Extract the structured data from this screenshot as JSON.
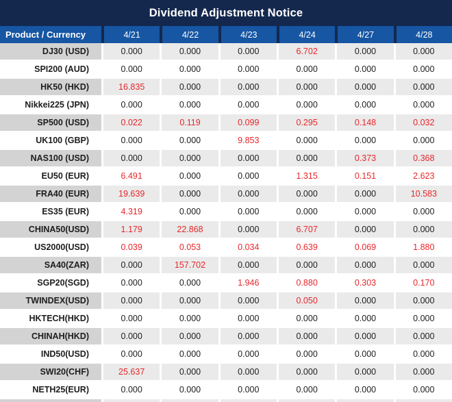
{
  "title": "Dividend Adjustment Notice",
  "colors": {
    "title_bg": "#14284e",
    "header_bg": "#1656a3",
    "alt_row_product_bg": "#d3d3d3",
    "alt_row_data_bg": "#eaeaea",
    "row_bg": "#ffffff",
    "value_red": "#e7262a",
    "value_black": "#1c1c1c",
    "header_text": "#ffffff"
  },
  "table": {
    "product_header": "Product / Currency",
    "date_headers": [
      "4/21",
      "4/22",
      "4/23",
      "4/24",
      "4/27",
      "4/28"
    ],
    "rows": [
      {
        "product": "DJ30 (USD)",
        "values": [
          "0.000",
          "0.000",
          "0.000",
          "6.702",
          "0.000",
          "0.000"
        ],
        "red": [
          false,
          false,
          false,
          true,
          false,
          false
        ]
      },
      {
        "product": "SPI200 (AUD)",
        "values": [
          "0.000",
          "0.000",
          "0.000",
          "0.000",
          "0.000",
          "0.000"
        ],
        "red": [
          false,
          false,
          false,
          false,
          false,
          false
        ]
      },
      {
        "product": "HK50 (HKD)",
        "values": [
          "16.835",
          "0.000",
          "0.000",
          "0.000",
          "0.000",
          "0.000"
        ],
        "red": [
          true,
          false,
          false,
          false,
          false,
          false
        ]
      },
      {
        "product": "Nikkei225 (JPN)",
        "values": [
          "0.000",
          "0.000",
          "0.000",
          "0.000",
          "0.000",
          "0.000"
        ],
        "red": [
          false,
          false,
          false,
          false,
          false,
          false
        ]
      },
      {
        "product": "SP500 (USD)",
        "values": [
          "0.022",
          "0.119",
          "0.099",
          "0.295",
          "0.148",
          "0.032"
        ],
        "red": [
          true,
          true,
          true,
          true,
          true,
          true
        ]
      },
      {
        "product": "UK100 (GBP)",
        "values": [
          "0.000",
          "0.000",
          "9.853",
          "0.000",
          "0.000",
          "0.000"
        ],
        "red": [
          false,
          false,
          true,
          false,
          false,
          false
        ]
      },
      {
        "product": "NAS100 (USD)",
        "values": [
          "0.000",
          "0.000",
          "0.000",
          "0.000",
          "0.373",
          "0.368"
        ],
        "red": [
          false,
          false,
          false,
          false,
          true,
          true
        ]
      },
      {
        "product": "EU50 (EUR)",
        "values": [
          "6.491",
          "0.000",
          "0.000",
          "1.315",
          "0.151",
          "2.623"
        ],
        "red": [
          true,
          false,
          false,
          true,
          true,
          true
        ]
      },
      {
        "product": "FRA40 (EUR)",
        "values": [
          "19.639",
          "0.000",
          "0.000",
          "0.000",
          "0.000",
          "10.583"
        ],
        "red": [
          true,
          false,
          false,
          false,
          false,
          true
        ]
      },
      {
        "product": "ES35 (EUR)",
        "values": [
          "4.319",
          "0.000",
          "0.000",
          "0.000",
          "0.000",
          "0.000"
        ],
        "red": [
          true,
          false,
          false,
          false,
          false,
          false
        ]
      },
      {
        "product": "CHINA50(USD)",
        "values": [
          "1.179",
          "22.868",
          "0.000",
          "6.707",
          "0.000",
          "0.000"
        ],
        "red": [
          true,
          true,
          false,
          true,
          false,
          false
        ]
      },
      {
        "product": "US2000(USD)",
        "values": [
          "0.039",
          "0.053",
          "0.034",
          "0.639",
          "0.069",
          "1.880"
        ],
        "red": [
          true,
          true,
          true,
          true,
          true,
          true
        ]
      },
      {
        "product": "SA40(ZAR)",
        "values": [
          "0.000",
          "157.702",
          "0.000",
          "0.000",
          "0.000",
          "0.000"
        ],
        "red": [
          false,
          true,
          false,
          false,
          false,
          false
        ]
      },
      {
        "product": "SGP20(SGD)",
        "values": [
          "0.000",
          "0.000",
          "1.946",
          "0.880",
          "0.303",
          "0.170"
        ],
        "red": [
          false,
          false,
          true,
          true,
          true,
          true
        ]
      },
      {
        "product": "TWINDEX(USD)",
        "values": [
          "0.000",
          "0.000",
          "0.000",
          "0.050",
          "0.000",
          "0.000"
        ],
        "red": [
          false,
          false,
          false,
          true,
          false,
          false
        ]
      },
      {
        "product": "HKTECH(HKD)",
        "values": [
          "0.000",
          "0.000",
          "0.000",
          "0.000",
          "0.000",
          "0.000"
        ],
        "red": [
          false,
          false,
          false,
          false,
          false,
          false
        ]
      },
      {
        "product": "CHINAH(HKD)",
        "values": [
          "0.000",
          "0.000",
          "0.000",
          "0.000",
          "0.000",
          "0.000"
        ],
        "red": [
          false,
          false,
          false,
          false,
          false,
          false
        ]
      },
      {
        "product": "IND50(USD)",
        "values": [
          "0.000",
          "0.000",
          "0.000",
          "0.000",
          "0.000",
          "0.000"
        ],
        "red": [
          false,
          false,
          false,
          false,
          false,
          false
        ]
      },
      {
        "product": "SWI20(CHF)",
        "values": [
          "25.637",
          "0.000",
          "0.000",
          "0.000",
          "0.000",
          "0.000"
        ],
        "red": [
          true,
          false,
          false,
          false,
          false,
          false
        ]
      },
      {
        "product": "NETH25(EUR)",
        "values": [
          "0.000",
          "0.000",
          "0.000",
          "0.000",
          "0.000",
          "0.000"
        ],
        "red": [
          false,
          false,
          false,
          false,
          false,
          false
        ]
      }
    ]
  }
}
